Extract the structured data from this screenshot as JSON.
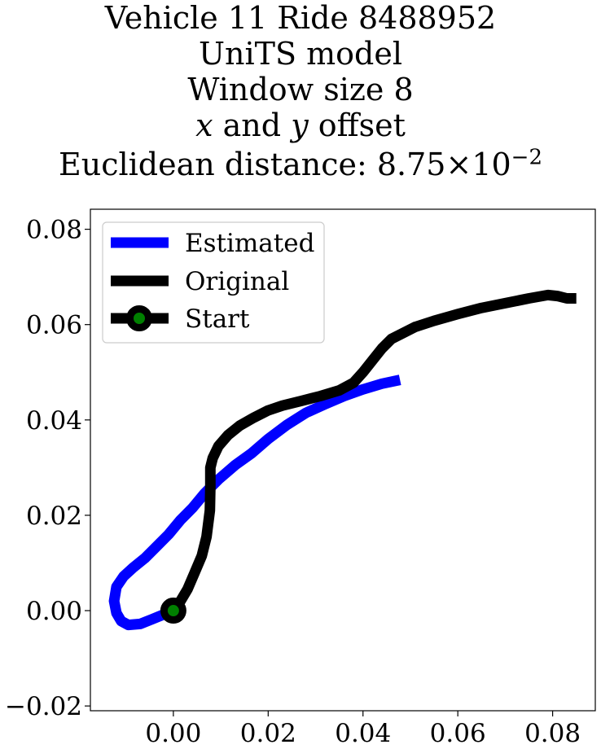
{
  "chart_data": {
    "type": "line",
    "title": {
      "line1": "Vehicle 11 Ride 8488952",
      "line2": "UniTS model",
      "line3": "Window size 8",
      "line4_var_x": "x",
      "line4_and": " and ",
      "line4_var_y": "y",
      "line4_rest": " offset",
      "line5_prefix": "Euclidean distance: ",
      "line5_mantissa": "8.75",
      "line5_times": "×",
      "line5_base": "10",
      "line5_exponent": "−2"
    },
    "xlim": [
      -0.0175,
      0.089
    ],
    "ylim": [
      -0.021,
      0.0842
    ],
    "x_ticks": [
      0.0,
      0.02,
      0.04,
      0.06,
      0.08
    ],
    "x_tick_labels": [
      "0.00",
      "0.02",
      "0.04",
      "0.06",
      "0.08"
    ],
    "y_ticks": [
      -0.02,
      0.0,
      0.02,
      0.04,
      0.06,
      0.08
    ],
    "y_tick_labels": [
      "−0.02",
      "0.00",
      "0.02",
      "0.04",
      "0.06",
      "0.08"
    ],
    "grid": false,
    "legend_position": "upper-left",
    "series": [
      {
        "name": "Estimated",
        "color": "#0000ff",
        "x": [
          0.0,
          -0.002,
          -0.0045,
          -0.007,
          -0.0095,
          -0.011,
          -0.012,
          -0.0125,
          -0.012,
          -0.0105,
          -0.0085,
          -0.006,
          -0.0035,
          -0.001,
          0.0015,
          0.004,
          0.0065,
          0.0095,
          0.013,
          0.0165,
          0.02,
          0.024,
          0.028,
          0.032,
          0.036,
          0.04,
          0.044,
          0.0478
        ],
        "y": [
          0.0,
          -0.0008,
          -0.0018,
          -0.0028,
          -0.003,
          -0.0022,
          -0.0005,
          0.002,
          0.005,
          0.0072,
          0.009,
          0.011,
          0.0135,
          0.016,
          0.019,
          0.0215,
          0.0245,
          0.0275,
          0.0305,
          0.033,
          0.036,
          0.039,
          0.0415,
          0.0433,
          0.045,
          0.0464,
          0.0476,
          0.0484
        ]
      },
      {
        "name": "Original",
        "color": "#000000",
        "x": [
          0.0,
          0.0015,
          0.003,
          0.0045,
          0.006,
          0.007,
          0.0077,
          0.0078,
          0.0078,
          0.0083,
          0.0095,
          0.0115,
          0.014,
          0.017,
          0.02,
          0.023,
          0.027,
          0.031,
          0.035,
          0.038,
          0.04,
          0.042,
          0.044,
          0.046,
          0.048,
          0.051,
          0.055,
          0.06,
          0.065,
          0.07,
          0.075,
          0.079,
          0.081,
          0.083,
          0.085
        ],
        "y": [
          0.0,
          0.002,
          0.0045,
          0.008,
          0.0115,
          0.0155,
          0.021,
          0.026,
          0.03,
          0.032,
          0.0345,
          0.0368,
          0.0388,
          0.0405,
          0.042,
          0.043,
          0.044,
          0.045,
          0.0462,
          0.0478,
          0.05,
          0.0525,
          0.055,
          0.057,
          0.058,
          0.0595,
          0.0608,
          0.0622,
          0.0635,
          0.0645,
          0.0655,
          0.0662,
          0.066,
          0.0655,
          0.0655
        ]
      }
    ],
    "start_point": {
      "name": "Start",
      "x": 0.0,
      "y": 0.0,
      "edge_color": "#000000",
      "fill_color": "#008000"
    }
  }
}
